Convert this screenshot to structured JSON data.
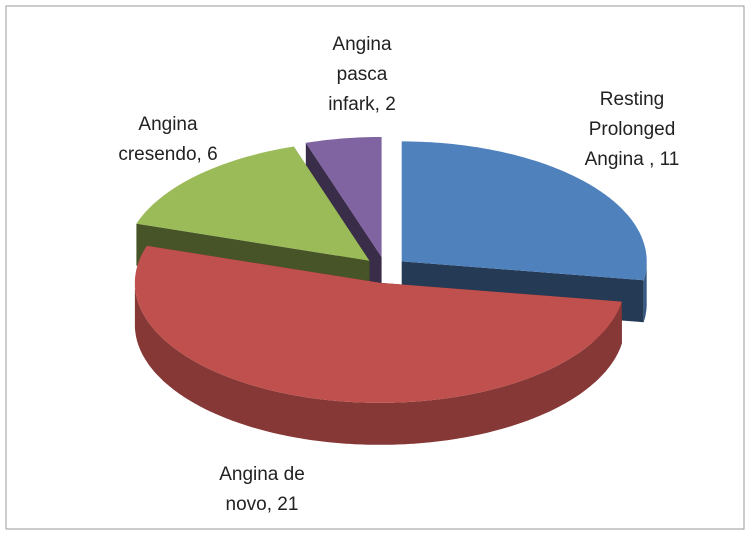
{
  "chart_data": {
    "type": "pie3d",
    "categories": [
      "Resting Prolonged Angina",
      "Angina de novo",
      "Angina cresendo",
      "Angina pasca infark"
    ],
    "values": [
      11,
      21,
      6,
      2
    ],
    "value_labels": [
      [
        "Resting",
        "Prolonged",
        "Angina , 11"
      ],
      [
        "Angina de",
        "novo, 21"
      ],
      [
        "Angina",
        "cresendo, 6"
      ],
      [
        "Angina",
        "pasca",
        "infark, 2"
      ]
    ],
    "colors": [
      "#4f81bd",
      "#c0504d",
      "#9bbb59",
      "#8064a2"
    ]
  }
}
